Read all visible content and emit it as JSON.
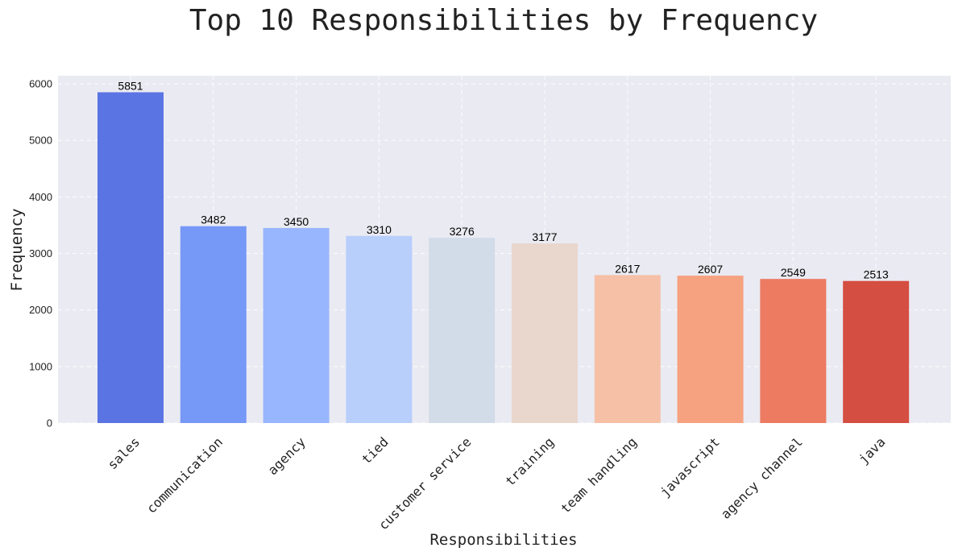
{
  "chart_data": {
    "type": "bar",
    "title": "Top 10 Responsibilities by Frequency",
    "xlabel": "Responsibilities",
    "ylabel": "Frequency",
    "categories": [
      "sales",
      "communication",
      "agency",
      "tied",
      "customer service",
      "training",
      "team handling",
      "javascript",
      "agency channel",
      "java"
    ],
    "values": [
      5851,
      3482,
      3450,
      3310,
      3276,
      3177,
      2617,
      2607,
      2549,
      2513
    ],
    "data_labels": [
      "5851",
      "3482",
      "3450",
      "3310",
      "3276",
      "3177",
      "2617",
      "2607",
      "2549",
      "2513"
    ],
    "yticks": [
      0,
      1000,
      2000,
      3000,
      4000,
      5000,
      6000
    ],
    "ytick_labels": [
      "0",
      "1000",
      "2000",
      "3000",
      "4000",
      "5000",
      "6000"
    ],
    "ylim": [
      0,
      6143
    ],
    "grid": true,
    "legend": "none",
    "colors": [
      "#5a74e3",
      "#7698f6",
      "#98b6fd",
      "#b8cefb",
      "#d2dbe8",
      "#e9d6cc",
      "#f5c0a6",
      "#f6a180",
      "#ec7b62",
      "#d44e41"
    ],
    "plot_background": "#eaeaf2"
  }
}
